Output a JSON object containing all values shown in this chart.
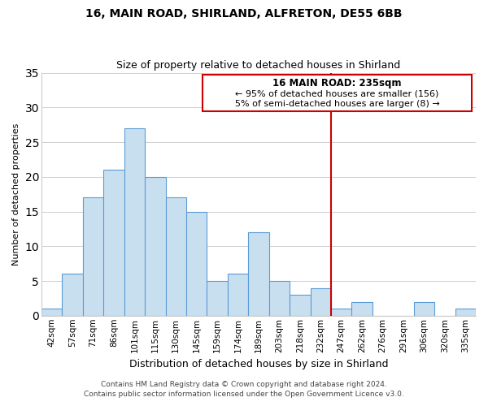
{
  "title": "16, MAIN ROAD, SHIRLAND, ALFRETON, DE55 6BB",
  "subtitle": "Size of property relative to detached houses in Shirland",
  "xlabel": "Distribution of detached houses by size in Shirland",
  "ylabel": "Number of detached properties",
  "footer_lines": [
    "Contains HM Land Registry data © Crown copyright and database right 2024.",
    "Contains public sector information licensed under the Open Government Licence v3.0."
  ],
  "bar_labels": [
    "42sqm",
    "57sqm",
    "71sqm",
    "86sqm",
    "101sqm",
    "115sqm",
    "130sqm",
    "145sqm",
    "159sqm",
    "174sqm",
    "189sqm",
    "203sqm",
    "218sqm",
    "232sqm",
    "247sqm",
    "262sqm",
    "276sqm",
    "291sqm",
    "306sqm",
    "320sqm",
    "335sqm"
  ],
  "bar_values": [
    1,
    6,
    17,
    21,
    27,
    20,
    17,
    15,
    5,
    6,
    12,
    5,
    3,
    4,
    1,
    2,
    0,
    0,
    2,
    0,
    1
  ],
  "bar_color": "#c8dff0",
  "bar_edge_color": "#5b9bd5",
  "grid_color": "#d0d0d0",
  "vline_color": "#cc0000",
  "vline_index": 13,
  "ylim": [
    0,
    35
  ],
  "yticks": [
    0,
    5,
    10,
    15,
    20,
    25,
    30,
    35
  ],
  "annotation_title": "16 MAIN ROAD: 235sqm",
  "annotation_line1": "← 95% of detached houses are smaller (156)",
  "annotation_line2": "5% of semi-detached houses are larger (8) →",
  "annotation_box_color": "#ffffff",
  "annotation_box_edge": "#cc0000",
  "title_fontsize": 10,
  "subtitle_fontsize": 9,
  "ylabel_fontsize": 8,
  "xlabel_fontsize": 9,
  "tick_fontsize": 7.5,
  "footer_fontsize": 6.5
}
